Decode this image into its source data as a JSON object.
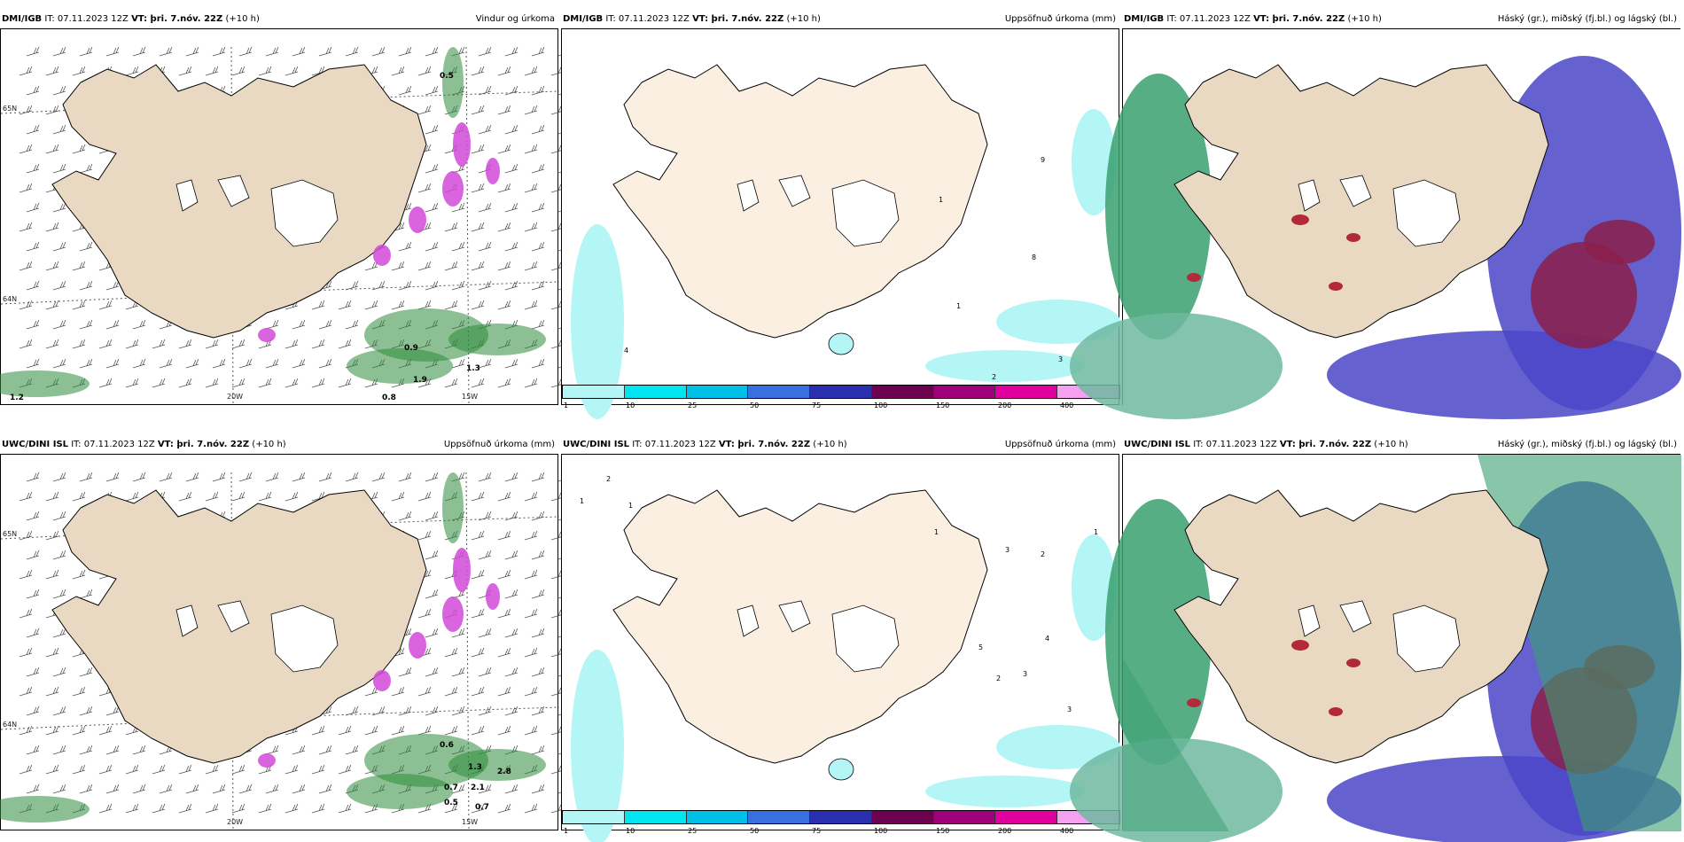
{
  "panels": [
    {
      "model": "DMI/IGB",
      "it": "07.11.2023 12Z",
      "vt": "þri. 7.nóv. 22Z",
      "lead": "(+10 h)",
      "title": "Vindur og úrkoma",
      "kind": "wind"
    },
    {
      "model": "DMI/IGB",
      "it": "07.11.2023 12Z",
      "vt": "þri. 7.nóv. 22Z",
      "lead": "(+10 h)",
      "title": "Uppsöfnuð úrkoma (mm)",
      "kind": "precip"
    },
    {
      "model": "DMI/IGB",
      "it": "07.11.2023 12Z",
      "vt": "þri. 7.nóv. 22Z",
      "lead": "(+10 h)",
      "title": "Háský (gr.), miðský (fj.bl.) og lágský (bl.)",
      "kind": "cloud"
    },
    {
      "model": "UWC/DINI ISL",
      "it": "07.11.2023 12Z",
      "vt": "þri. 7.nóv. 22Z",
      "lead": "(+10 h)",
      "title": "Uppsöfnuð úrkoma (mm)",
      "kind": "wind"
    },
    {
      "model": "UWC/DINI ISL",
      "it": "07.11.2023 12Z",
      "vt": "þri. 7.nóv. 22Z",
      "lead": "(+10 h)",
      "title": "Uppsöfnuð úrkoma (mm)",
      "kind": "precip"
    },
    {
      "model": "UWC/DINI ISL",
      "it": "07.11.2023 12Z",
      "vt": "þri. 7.nóv. 22Z",
      "lead": "(+10 h)",
      "title": "Háský (gr.), miðský (fj.bl.) og lágský (bl.)",
      "kind": "cloud"
    }
  ],
  "labels": {
    "it": "IT:",
    "vt": "VT:"
  },
  "axis": {
    "lat65": "65N",
    "lat64": "64N",
    "lon20": "20W",
    "lon15": "15W"
  },
  "colorbar": {
    "ticks": [
      "1",
      "10",
      "25",
      "50",
      "75",
      "100",
      "150",
      "200",
      "400"
    ],
    "colors": [
      "#b4f5f5",
      "#00e5f0",
      "#00bfe6",
      "#3a6fe0",
      "#2a2fb0",
      "#6e0050",
      "#a0007a",
      "#e000a0",
      "#f5a0f0"
    ]
  },
  "wind_values_top": [
    "0.5",
    "1.2",
    "0.9",
    "1.9",
    "1.3",
    "0.8"
  ],
  "wind_values_bottom": [
    "0.6",
    "0.5",
    "0.7",
    "2.8",
    "0.7",
    "1.3",
    "2.1"
  ],
  "precip_values_top": [
    "1",
    "4",
    "2",
    "3",
    "8",
    "1",
    "9"
  ],
  "precip_values_bottom": [
    "2",
    "1",
    "1",
    "1",
    "3",
    "2",
    "5",
    "3",
    "4",
    "2",
    "3",
    "1"
  ]
}
